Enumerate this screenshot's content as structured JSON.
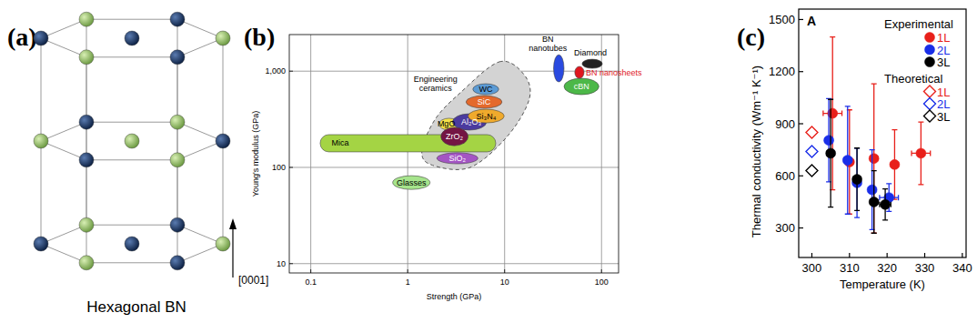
{
  "panels": [
    "(a)",
    "(b)",
    "(c)"
  ],
  "diagram": {
    "caption": "Hexagonal BN",
    "direction_label": "[0001]"
  },
  "chart_data": [
    {
      "type": "region",
      "x_label": "Strength (GPa)",
      "y_label": "Young's modulus (GPa)",
      "log": true,
      "grid": true,
      "xlim": [
        0.06,
        150
      ],
      "ylim": [
        8,
        2400
      ],
      "xticks": [
        0.1,
        1,
        10,
        100
      ],
      "yticks": [
        {
          "value": 1000,
          "label": "1,000"
        },
        100,
        10
      ],
      "series": [
        {
          "name": "Engineering ceramics",
          "color": "#d3d3d3",
          "marker": "blob",
          "line_style": "dashed",
          "x_range": [
            1.4,
            18
          ],
          "y_range": [
            100,
            1250
          ]
        },
        {
          "name": "Mica",
          "color": "#a4d444",
          "marker": "rounded_rect",
          "x_range": [
            0.125,
            8.1
          ],
          "y_range": [
            145,
            219
          ]
        },
        {
          "name": "SiO₂",
          "color": "#a455c4",
          "marker": "ellipse",
          "x_range": [
            2.0,
            5.3
          ],
          "y_range": [
            109,
            142
          ]
        },
        {
          "name": "MgO",
          "color": "#f3e24a",
          "marker": "ellipse",
          "x_range": [
            2.1,
            3.4
          ],
          "y_range": [
            244,
            324
          ]
        },
        {
          "name": "Al₂O₃",
          "color": "#4b3a9e",
          "marker": "ellipse",
          "x_range": [
            2.9,
            6.5
          ],
          "y_range": [
            244,
            361
          ]
        },
        {
          "name": "ZrO₂",
          "color": "#741543",
          "marker": "ellipse",
          "x_range": [
            2.2,
            4.2
          ],
          "y_range": [
            168,
            260
          ]
        },
        {
          "name": "Si₃N₄",
          "color": "#f0aa2c",
          "marker": "ellipse",
          "x_range": [
            4.2,
            9.9
          ],
          "y_range": [
            290,
            402
          ]
        },
        {
          "name": "SiC",
          "color": "#e4692c",
          "marker": "ellipse",
          "x_range": [
            4.0,
            9.4
          ],
          "y_range": [
            411,
            557
          ]
        },
        {
          "name": "WC",
          "color": "#5b9bd5",
          "marker": "ellipse",
          "x_range": [
            4.7,
            8.7
          ],
          "y_range": [
            570,
            740
          ]
        },
        {
          "name": "Glasses",
          "color": "#a6e48c",
          "marker": "ellipse",
          "x_range": [
            0.7,
            1.7
          ],
          "y_range": [
            59,
            82
          ]
        },
        {
          "name": "BN nanotubes",
          "color": "#2a4ae0",
          "marker": "ellipse",
          "x_range": [
            32,
            41
          ],
          "y_range": [
            773,
            1480
          ]
        },
        {
          "name": "cBN",
          "color": "#4cb848",
          "marker": "ellipse",
          "x_range": [
            41,
            94
          ],
          "y_range": [
            570,
            843
          ]
        },
        {
          "name": "BN nanosheets",
          "color": "#e0161e",
          "marker": "ellipse",
          "x_range": [
            53,
            66
          ],
          "y_range": [
            843,
            1120
          ]
        },
        {
          "name": "Diamond",
          "color": "#222222",
          "marker": "ellipse",
          "x_range": [
            63,
            102
          ],
          "y_range": [
            1070,
            1330
          ]
        }
      ]
    },
    {
      "type": "scatter",
      "annotation": "A",
      "x_label": "Temperature (K)",
      "y_label": "Thermal conductivity (Wm⁻¹ K⁻¹)",
      "grid": false,
      "legend": "upper right",
      "xlim": [
        296.5,
        341
      ],
      "ylim": [
        130,
        1560
      ],
      "xticks": [
        300,
        310,
        320,
        330,
        340
      ],
      "yticks": [
        300,
        600,
        900,
        1200,
        1500
      ],
      "legend_groups": [
        {
          "title": "Experimental",
          "series": [
            {
              "name": "1L",
              "color": "#e8201a",
              "marker": "circle",
              "x": [
                305.5,
                310,
                316.5,
                322,
                329
              ],
              "values": [
                960,
                680,
                700,
                665,
                730
              ],
              "xerr": [
                2.5,
                1,
                1,
                1,
                2.5
              ],
              "yerr": [
                440,
                300,
                430,
                200,
                180
              ]
            },
            {
              "name": "2L",
              "color": "#1a2ee8",
              "marker": "circle",
              "x": [
                304.5,
                309.5,
                312,
                316,
                320.5
              ],
              "values": [
                805,
                690,
                560,
                520,
                475
              ],
              "xerr": [
                1,
                1,
                1,
                1,
                2.5
              ],
              "yerr": [
                240,
                310,
                200,
                230,
                80
              ]
            },
            {
              "name": "3L",
              "color": "#000000",
              "marker": "circle",
              "x": [
                305,
                312,
                316.5,
                319.5
              ],
              "values": [
                730,
                580,
                450,
                435
              ],
              "xerr": [
                1,
                1,
                1,
                1.5
              ],
              "yerr": [
                310,
                180,
                180,
                90
              ]
            }
          ]
        },
        {
          "title": "Theoretical",
          "series": [
            {
              "name": "1L",
              "color": "#e8201a",
              "marker": "open_diamond",
              "x": [
                300
              ],
              "values": [
                850
              ]
            },
            {
              "name": "2L",
              "color": "#1a2ee8",
              "marker": "open_diamond",
              "x": [
                300
              ],
              "values": [
                740
              ]
            },
            {
              "name": "3L",
              "color": "#000000",
              "marker": "open_diamond",
              "x": [
                300
              ],
              "values": [
                630
              ]
            }
          ]
        }
      ]
    }
  ]
}
